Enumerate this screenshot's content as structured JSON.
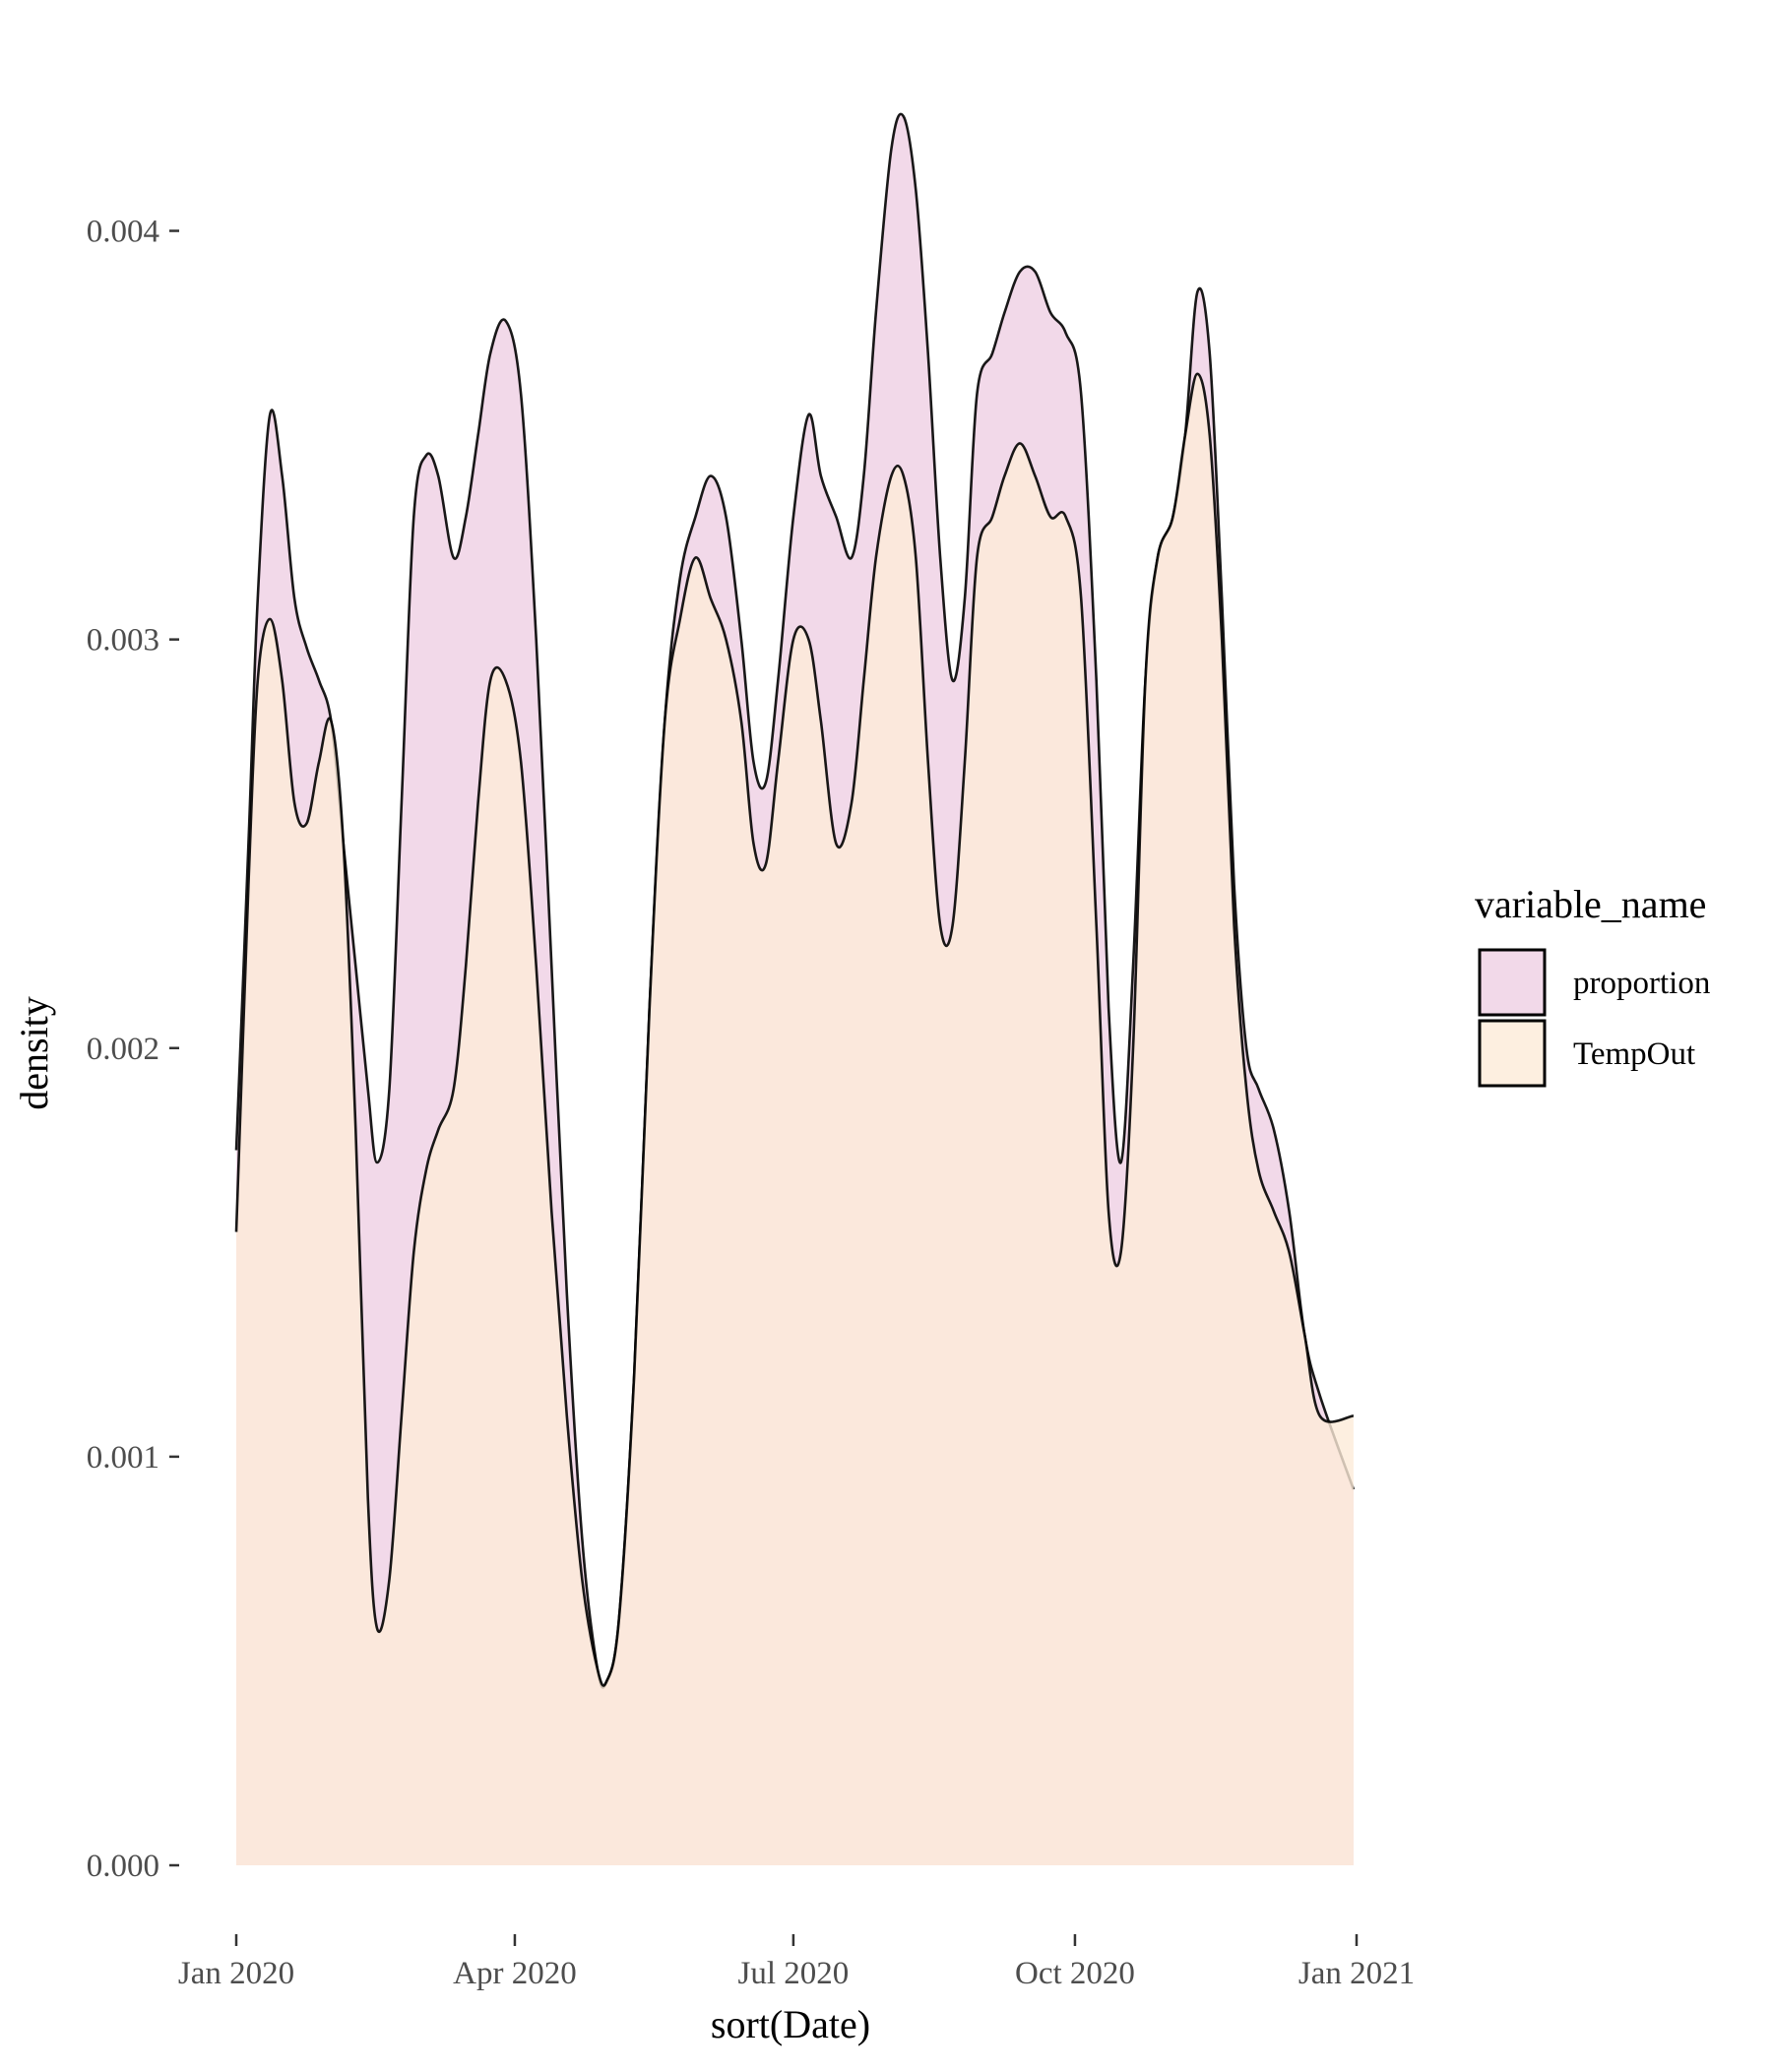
{
  "chart_data": {
    "type": "area",
    "xlabel": "sort(Date)",
    "ylabel": "density",
    "xlim": [
      "2020-01-01",
      "2021-01-01"
    ],
    "ylim": [
      0,
      0.0043
    ],
    "x_ticks": [
      "2020-01-01",
      "2020-04-01",
      "2020-07-01",
      "2020-10-01",
      "2021-01-01"
    ],
    "x_tick_labels": [
      "Jan 2020",
      "Apr 2020",
      "Jul 2020",
      "Oct 2020",
      "Jan 2021"
    ],
    "y_ticks": [
      0.0,
      0.001,
      0.002,
      0.003,
      0.004
    ],
    "y_tick_labels": [
      "0.000",
      "0.001",
      "0.002",
      "0.003",
      "0.004"
    ],
    "grid": false,
    "legend": {
      "title": "variable_name",
      "position": "right"
    },
    "series": [
      {
        "name": "proportion",
        "color": "#efcfe4",
        "points": [
          [
            "2020-01-01",
            0.00175
          ],
          [
            "2020-01-05",
            0.0025
          ],
          [
            "2020-01-08",
            0.0031
          ],
          [
            "2020-01-12",
            0.00355
          ],
          [
            "2020-01-16",
            0.0034
          ],
          [
            "2020-01-20",
            0.0031
          ],
          [
            "2020-01-24",
            0.00298
          ],
          [
            "2020-01-28",
            0.0029
          ],
          [
            "2020-02-01",
            0.0028
          ],
          [
            "2020-02-05",
            0.0025
          ],
          [
            "2020-02-09",
            0.0022
          ],
          [
            "2020-02-13",
            0.0019
          ],
          [
            "2020-02-16",
            0.00172
          ],
          [
            "2020-02-20",
            0.0019
          ],
          [
            "2020-02-24",
            0.0026
          ],
          [
            "2020-02-28",
            0.0033
          ],
          [
            "2020-03-03",
            0.00345
          ],
          [
            "2020-03-07",
            0.0034
          ],
          [
            "2020-03-12",
            0.0032
          ],
          [
            "2020-03-16",
            0.0033
          ],
          [
            "2020-03-20",
            0.0035
          ],
          [
            "2020-03-24",
            0.0037
          ],
          [
            "2020-03-29",
            0.00378
          ],
          [
            "2020-04-03",
            0.0036
          ],
          [
            "2020-04-08",
            0.003
          ],
          [
            "2020-04-13",
            0.0022
          ],
          [
            "2020-04-18",
            0.0014
          ],
          [
            "2020-04-23",
            0.0008
          ],
          [
            "2020-04-28",
            0.00048
          ],
          [
            "2020-05-01",
            0.00045
          ],
          [
            "2020-05-05",
            0.0006
          ],
          [
            "2020-05-10",
            0.0012
          ],
          [
            "2020-05-15",
            0.0021
          ],
          [
            "2020-05-20",
            0.0028
          ],
          [
            "2020-05-25",
            0.00315
          ],
          [
            "2020-05-30",
            0.0033
          ],
          [
            "2020-06-04",
            0.0034
          ],
          [
            "2020-06-09",
            0.0033
          ],
          [
            "2020-06-14",
            0.003
          ],
          [
            "2020-06-18",
            0.0027
          ],
          [
            "2020-06-22",
            0.00265
          ],
          [
            "2020-06-26",
            0.0029
          ],
          [
            "2020-07-01",
            0.0033
          ],
          [
            "2020-07-06",
            0.00355
          ],
          [
            "2020-07-10",
            0.0034
          ],
          [
            "2020-07-15",
            0.0033
          ],
          [
            "2020-07-20",
            0.0032
          ],
          [
            "2020-07-24",
            0.0034
          ],
          [
            "2020-07-28",
            0.0038
          ],
          [
            "2020-08-02",
            0.0042
          ],
          [
            "2020-08-06",
            0.00428
          ],
          [
            "2020-08-10",
            0.0041
          ],
          [
            "2020-08-14",
            0.0037
          ],
          [
            "2020-08-18",
            0.0032
          ],
          [
            "2020-08-22",
            0.0029
          ],
          [
            "2020-08-26",
            0.0031
          ],
          [
            "2020-08-30",
            0.0036
          ],
          [
            "2020-09-04",
            0.0037
          ],
          [
            "2020-09-08",
            0.0038
          ],
          [
            "2020-09-13",
            0.0039
          ],
          [
            "2020-09-18",
            0.0039
          ],
          [
            "2020-09-23",
            0.0038
          ],
          [
            "2020-09-28",
            0.00375
          ],
          [
            "2020-10-03",
            0.0036
          ],
          [
            "2020-10-08",
            0.0029
          ],
          [
            "2020-10-12",
            0.0021
          ],
          [
            "2020-10-16",
            0.00172
          ],
          [
            "2020-10-20",
            0.0022
          ],
          [
            "2020-10-24",
            0.0029
          ],
          [
            "2020-10-28",
            0.0032
          ],
          [
            "2020-11-02",
            0.0033
          ],
          [
            "2020-11-06",
            0.0035
          ],
          [
            "2020-11-10",
            0.00385
          ],
          [
            "2020-11-14",
            0.0037
          ],
          [
            "2020-11-18",
            0.0031
          ],
          [
            "2020-11-22",
            0.0024
          ],
          [
            "2020-11-26",
            0.002
          ],
          [
            "2020-11-30",
            0.0019
          ],
          [
            "2020-12-05",
            0.0018
          ],
          [
            "2020-12-10",
            0.0016
          ],
          [
            "2020-12-15",
            0.0013
          ],
          [
            "2020-12-20",
            0.00115
          ],
          [
            "2020-12-31",
            0.00092
          ]
        ]
      },
      {
        "name": "TempOut",
        "color": "#fdebd8",
        "points": [
          [
            "2020-01-01",
            0.00155
          ],
          [
            "2020-01-05",
            0.0024
          ],
          [
            "2020-01-08",
            0.0029
          ],
          [
            "2020-01-12",
            0.00305
          ],
          [
            "2020-01-16",
            0.0029
          ],
          [
            "2020-01-20",
            0.0026
          ],
          [
            "2020-01-24",
            0.00255
          ],
          [
            "2020-01-28",
            0.0027
          ],
          [
            "2020-02-01",
            0.0028
          ],
          [
            "2020-02-05",
            0.0025
          ],
          [
            "2020-02-09",
            0.0018
          ],
          [
            "2020-02-13",
            0.0009
          ],
          [
            "2020-02-16",
            0.00058
          ],
          [
            "2020-02-20",
            0.0007
          ],
          [
            "2020-02-24",
            0.0011
          ],
          [
            "2020-02-28",
            0.0015
          ],
          [
            "2020-03-03",
            0.0017
          ],
          [
            "2020-03-07",
            0.0018
          ],
          [
            "2020-03-12",
            0.0019
          ],
          [
            "2020-03-16",
            0.0022
          ],
          [
            "2020-03-20",
            0.0026
          ],
          [
            "2020-03-24",
            0.0029
          ],
          [
            "2020-03-29",
            0.0029
          ],
          [
            "2020-04-03",
            0.0027
          ],
          [
            "2020-04-08",
            0.0022
          ],
          [
            "2020-04-13",
            0.0016
          ],
          [
            "2020-04-18",
            0.0011
          ],
          [
            "2020-04-23",
            0.0007
          ],
          [
            "2020-04-28",
            0.00048
          ],
          [
            "2020-05-01",
            0.00045
          ],
          [
            "2020-05-05",
            0.0006
          ],
          [
            "2020-05-10",
            0.0012
          ],
          [
            "2020-05-15",
            0.0021
          ],
          [
            "2020-05-20",
            0.0028
          ],
          [
            "2020-05-25",
            0.00305
          ],
          [
            "2020-05-30",
            0.0032
          ],
          [
            "2020-06-04",
            0.0031
          ],
          [
            "2020-06-09",
            0.003
          ],
          [
            "2020-06-14",
            0.0028
          ],
          [
            "2020-06-18",
            0.0025
          ],
          [
            "2020-06-22",
            0.00245
          ],
          [
            "2020-06-26",
            0.0027
          ],
          [
            "2020-07-01",
            0.003
          ],
          [
            "2020-07-06",
            0.003
          ],
          [
            "2020-07-10",
            0.0028
          ],
          [
            "2020-07-15",
            0.0025
          ],
          [
            "2020-07-20",
            0.0026
          ],
          [
            "2020-07-24",
            0.0029
          ],
          [
            "2020-07-28",
            0.0032
          ],
          [
            "2020-08-02",
            0.0034
          ],
          [
            "2020-08-06",
            0.0034
          ],
          [
            "2020-08-10",
            0.0032
          ],
          [
            "2020-08-14",
            0.0027
          ],
          [
            "2020-08-18",
            0.0023
          ],
          [
            "2020-08-22",
            0.0023
          ],
          [
            "2020-08-26",
            0.0027
          ],
          [
            "2020-08-30",
            0.0032
          ],
          [
            "2020-09-04",
            0.0033
          ],
          [
            "2020-09-08",
            0.0034
          ],
          [
            "2020-09-13",
            0.00348
          ],
          [
            "2020-09-18",
            0.0034
          ],
          [
            "2020-09-23",
            0.0033
          ],
          [
            "2020-09-28",
            0.0033
          ],
          [
            "2020-10-03",
            0.0031
          ],
          [
            "2020-10-08",
            0.0023
          ],
          [
            "2020-10-12",
            0.0016
          ],
          [
            "2020-10-16",
            0.0015
          ],
          [
            "2020-10-20",
            0.002
          ],
          [
            "2020-10-24",
            0.0029
          ],
          [
            "2020-10-28",
            0.0032
          ],
          [
            "2020-11-02",
            0.0033
          ],
          [
            "2020-11-06",
            0.0035
          ],
          [
            "2020-11-10",
            0.00365
          ],
          [
            "2020-11-14",
            0.0035
          ],
          [
            "2020-11-18",
            0.003
          ],
          [
            "2020-11-22",
            0.0023
          ],
          [
            "2020-11-26",
            0.0019
          ],
          [
            "2020-11-30",
            0.0017
          ],
          [
            "2020-12-05",
            0.0016
          ],
          [
            "2020-12-10",
            0.0015
          ],
          [
            "2020-12-15",
            0.0013
          ],
          [
            "2020-12-20",
            0.0011
          ],
          [
            "2020-12-31",
            0.0011
          ]
        ]
      }
    ]
  }
}
